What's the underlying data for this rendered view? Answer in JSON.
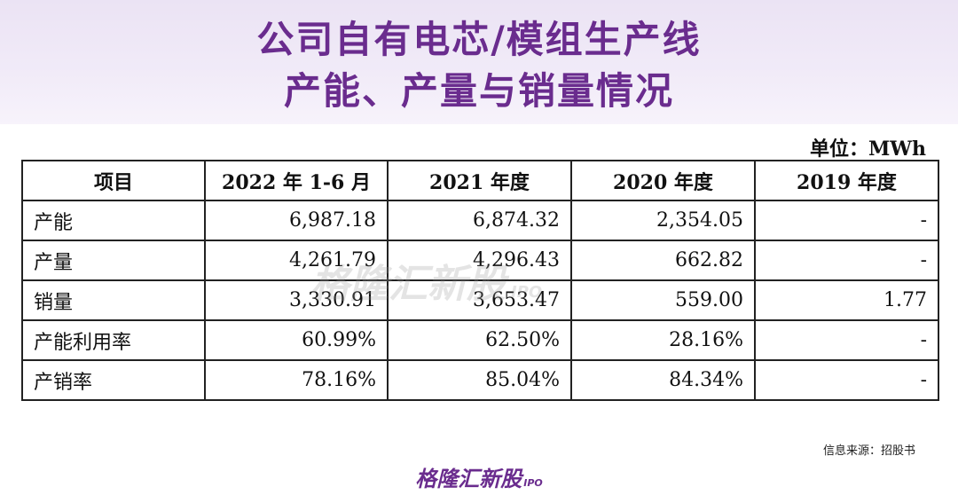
{
  "title": {
    "line1": "公司自有电芯/模组生产线",
    "line2": "产能、产量与销量情况"
  },
  "unit_label": "单位：MWh",
  "table": {
    "headers": [
      "项目",
      "2022 年 1-6 月",
      "2021 年度",
      "2020 年度",
      "2019 年度"
    ],
    "rows": [
      [
        "产能",
        "6,987.18",
        "6,874.32",
        "2,354.05",
        "-"
      ],
      [
        "产量",
        "4,261.79",
        "4,296.43",
        "662.82",
        "-"
      ],
      [
        "销量",
        "3,330.91",
        "3,653.47",
        "559.00",
        "1.77"
      ],
      [
        "产能利用率",
        "60.99%",
        "62.50%",
        "28.16%",
        "-"
      ],
      [
        "产销率",
        "78.16%",
        "85.04%",
        "84.34%",
        "-"
      ]
    ]
  },
  "watermark": {
    "text": "格隆汇新股",
    "sub": "IPO"
  },
  "source": "信息来源：招股书",
  "footer": {
    "logo_text": "格隆汇新股",
    "logo_sub": "IPO"
  },
  "colors": {
    "title": "#6a2c8e",
    "header_bg": "#ebe3f4",
    "border": "#222222"
  }
}
